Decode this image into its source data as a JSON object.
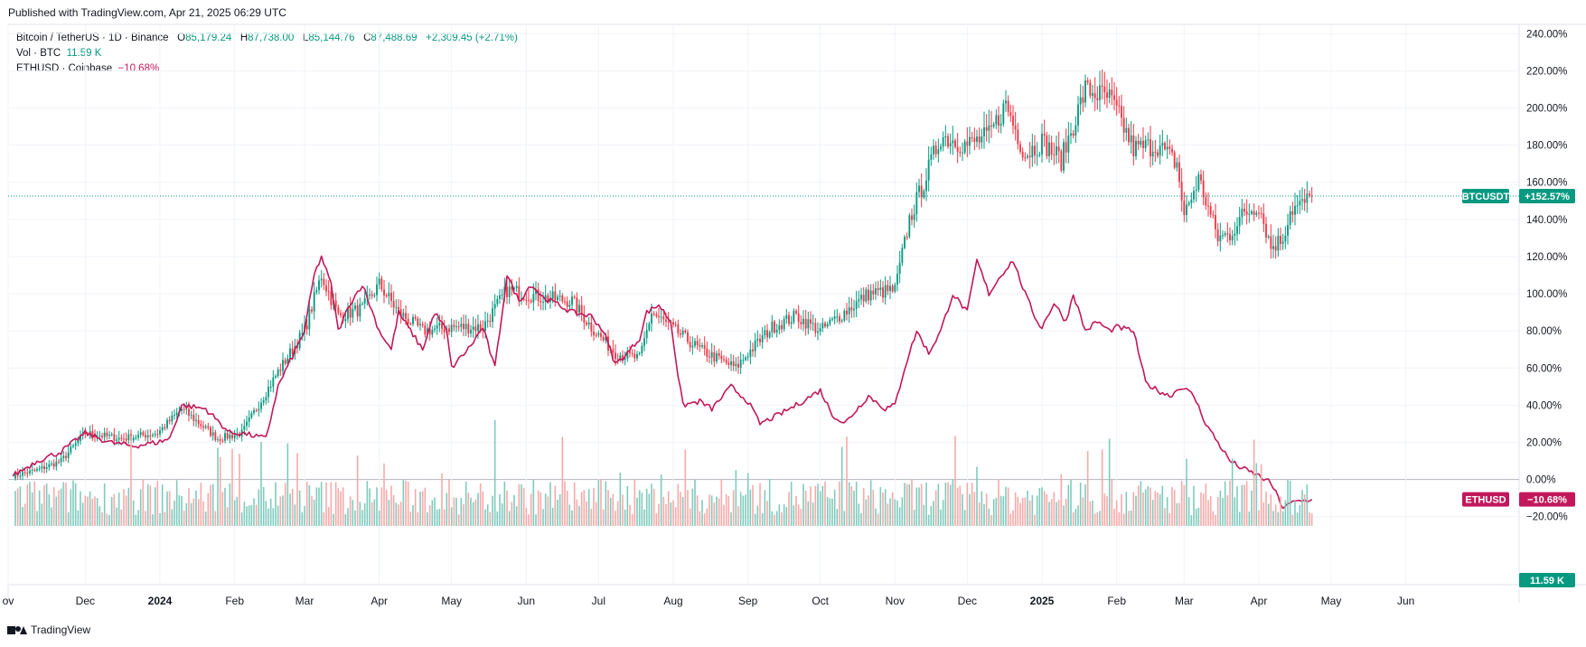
{
  "header": {
    "published": "Published with TradingView.com, Apr 21, 2025 06:29 UTC"
  },
  "legend": {
    "main_symbol": "Bitcoin / TetherUS · 1D · Binance",
    "ohlc": [
      {
        "k": "O",
        "v": "85,179.24"
      },
      {
        "k": "H",
        "v": "87,738.00"
      },
      {
        "k": "L",
        "v": "85,144.76"
      },
      {
        "k": "C",
        "v": "87,488.69"
      }
    ],
    "change": "+2,309.45 (+2.71%)",
    "vol_label": "Vol · BTC",
    "vol_value": "11.59 K",
    "compare_label": "ETHUSD · Coinbase",
    "compare_value": "−10.68%"
  },
  "colors": {
    "up": "#089981",
    "down": "#f23645",
    "eth": "#c2185b",
    "vol_up": "#7fcbbd",
    "vol_down": "#f7a9a9",
    "grid": "#f0f3fa",
    "zero": "#b2b5be"
  },
  "badges": {
    "btc_label": "BTCUSDT",
    "btc_value": "+152.57%",
    "eth_label": "ETHUSD",
    "eth_value": "−10.68%",
    "vol_value": "11.59 K"
  },
  "footer": {
    "brand": "TradingView"
  },
  "chart_data": {
    "type": "line",
    "scale": "percent",
    "y_ticks": [
      "240.00%",
      "220.00%",
      "200.00%",
      "180.00%",
      "160.00%",
      "140.00%",
      "120.00%",
      "100.00%",
      "80.00%",
      "60.00%",
      "40.00%",
      "20.00%",
      "0.00%",
      "−20.00%"
    ],
    "y_tick_values": [
      240,
      220,
      200,
      180,
      160,
      140,
      120,
      100,
      80,
      60,
      40,
      20,
      0,
      -20
    ],
    "ylim": [
      -25,
      245
    ],
    "x_ticks": [
      {
        "label": "ov",
        "day": -2
      },
      {
        "label": "Dec",
        "day": 30
      },
      {
        "label": "2024",
        "day": 61
      },
      {
        "label": "Feb",
        "day": 92
      },
      {
        "label": "Mar",
        "day": 121
      },
      {
        "label": "Apr",
        "day": 152
      },
      {
        "label": "May",
        "day": 182
      },
      {
        "label": "Jun",
        "day": 213
      },
      {
        "label": "Jul",
        "day": 243
      },
      {
        "label": "Aug",
        "day": 274
      },
      {
        "label": "Sep",
        "day": 305
      },
      {
        "label": "Oct",
        "day": 335
      },
      {
        "label": "Nov",
        "day": 366
      },
      {
        "label": "Dec",
        "day": 396
      },
      {
        "label": "2025",
        "day": 427
      },
      {
        "label": "Feb",
        "day": 458
      },
      {
        "label": "Mar",
        "day": 486
      },
      {
        "label": "Apr",
        "day": 517
      },
      {
        "label": "May",
        "day": 547
      },
      {
        "label": "Jun",
        "day": 578
      }
    ],
    "x_range_days": [
      -2,
      625
    ],
    "grid": true,
    "series": [
      {
        "name": "BTCUSDT",
        "style": "candles",
        "anchors": [
          [
            0,
            2
          ],
          [
            10,
            5
          ],
          [
            20,
            10
          ],
          [
            30,
            25
          ],
          [
            45,
            22
          ],
          [
            60,
            25
          ],
          [
            70,
            38
          ],
          [
            85,
            22
          ],
          [
            95,
            25
          ],
          [
            110,
            58
          ],
          [
            121,
            80
          ],
          [
            128,
            110
          ],
          [
            135,
            88
          ],
          [
            145,
            92
          ],
          [
            152,
            105
          ],
          [
            160,
            90
          ],
          [
            170,
            80
          ],
          [
            182,
            82
          ],
          [
            195,
            82
          ],
          [
            205,
            102
          ],
          [
            220,
            98
          ],
          [
            232,
            96
          ],
          [
            240,
            82
          ],
          [
            250,
            68
          ],
          [
            260,
            65
          ],
          [
            265,
            90
          ],
          [
            275,
            80
          ],
          [
            285,
            70
          ],
          [
            300,
            60
          ],
          [
            305,
            68
          ],
          [
            315,
            82
          ],
          [
            325,
            88
          ],
          [
            335,
            80
          ],
          [
            345,
            90
          ],
          [
            355,
            100
          ],
          [
            366,
            102
          ],
          [
            372,
            140
          ],
          [
            378,
            160
          ],
          [
            385,
            185
          ],
          [
            396,
            180
          ],
          [
            405,
            185
          ],
          [
            412,
            202
          ],
          [
            420,
            175
          ],
          [
            427,
            182
          ],
          [
            435,
            172
          ],
          [
            445,
            210
          ],
          [
            455,
            205
          ],
          [
            458,
            198
          ],
          [
            465,
            178
          ],
          [
            475,
            180
          ],
          [
            483,
            170
          ],
          [
            486,
            142
          ],
          [
            492,
            162
          ],
          [
            500,
            130
          ],
          [
            505,
            132
          ],
          [
            510,
            142
          ],
          [
            517,
            148
          ],
          [
            522,
            125
          ],
          [
            527,
            130
          ],
          [
            530,
            145
          ],
          [
            535,
            148
          ],
          [
            539,
            152
          ]
        ],
        "last_value": 152.57
      },
      {
        "name": "ETHUSD",
        "style": "line",
        "anchors": [
          [
            0,
            2
          ],
          [
            10,
            10
          ],
          [
            20,
            15
          ],
          [
            25,
            20
          ],
          [
            30,
            25
          ],
          [
            40,
            20
          ],
          [
            50,
            18
          ],
          [
            60,
            20
          ],
          [
            65,
            22
          ],
          [
            70,
            40
          ],
          [
            80,
            38
          ],
          [
            90,
            25
          ],
          [
            95,
            25
          ],
          [
            105,
            22
          ],
          [
            110,
            50
          ],
          [
            121,
            80
          ],
          [
            125,
            110
          ],
          [
            128,
            120
          ],
          [
            132,
            105
          ],
          [
            135,
            80
          ],
          [
            140,
            95
          ],
          [
            145,
            105
          ],
          [
            152,
            80
          ],
          [
            157,
            70
          ],
          [
            160,
            90
          ],
          [
            165,
            80
          ],
          [
            170,
            70
          ],
          [
            175,
            90
          ],
          [
            180,
            80
          ],
          [
            182,
            60
          ],
          [
            190,
            72
          ],
          [
            195,
            82
          ],
          [
            200,
            60
          ],
          [
            205,
            110
          ],
          [
            210,
            96
          ],
          [
            215,
            105
          ],
          [
            220,
            98
          ],
          [
            225,
            95
          ],
          [
            232,
            90
          ],
          [
            240,
            88
          ],
          [
            245,
            80
          ],
          [
            250,
            62
          ],
          [
            255,
            68
          ],
          [
            260,
            76
          ],
          [
            263,
            90
          ],
          [
            268,
            94
          ],
          [
            273,
            85
          ],
          [
            276,
            56
          ],
          [
            278,
            40
          ],
          [
            285,
            42
          ],
          [
            290,
            38
          ],
          [
            298,
            50
          ],
          [
            305,
            42
          ],
          [
            310,
            30
          ],
          [
            318,
            35
          ],
          [
            325,
            40
          ],
          [
            335,
            48
          ],
          [
            340,
            35
          ],
          [
            345,
            30
          ],
          [
            355,
            45
          ],
          [
            362,
            38
          ],
          [
            366,
            40
          ],
          [
            370,
            60
          ],
          [
            375,
            80
          ],
          [
            380,
            68
          ],
          [
            385,
            80
          ],
          [
            390,
            100
          ],
          [
            396,
            90
          ],
          [
            400,
            118
          ],
          [
            405,
            100
          ],
          [
            410,
            110
          ],
          [
            415,
            118
          ],
          [
            420,
            100
          ],
          [
            425,
            85
          ],
          [
            427,
            82
          ],
          [
            432,
            95
          ],
          [
            437,
            85
          ],
          [
            440,
            100
          ],
          [
            445,
            80
          ],
          [
            450,
            85
          ],
          [
            455,
            80
          ],
          [
            458,
            82
          ],
          [
            465,
            80
          ],
          [
            470,
            52
          ],
          [
            475,
            48
          ],
          [
            480,
            45
          ],
          [
            485,
            50
          ],
          [
            490,
            45
          ],
          [
            495,
            30
          ],
          [
            500,
            20
          ],
          [
            505,
            10
          ],
          [
            510,
            6
          ],
          [
            517,
            2
          ],
          [
            522,
            -2
          ],
          [
            527,
            -15
          ],
          [
            532,
            -12
          ],
          [
            539,
            -10.68
          ]
        ],
        "last_value": -10.68
      },
      {
        "name": "Vol · BTC",
        "style": "histogram",
        "last_value": "11.59 K"
      }
    ]
  }
}
